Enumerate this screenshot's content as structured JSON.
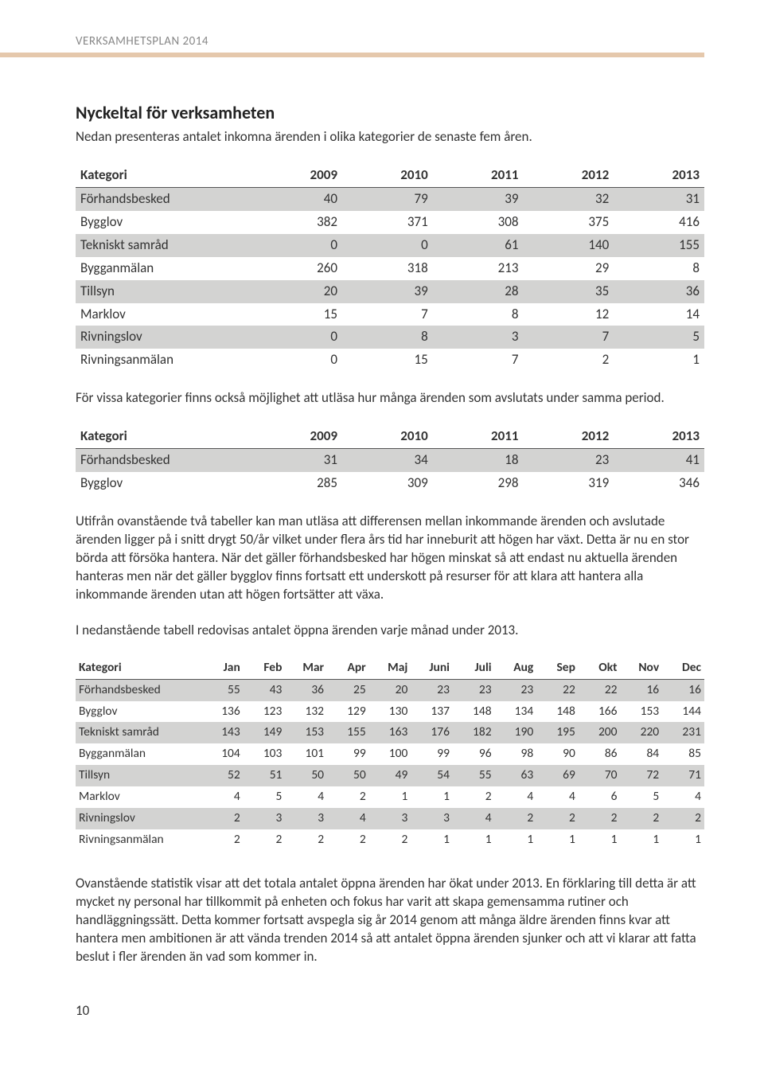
{
  "header": {
    "running": "VERKSAMHETSPLAN 2014"
  },
  "section": {
    "title": "Nyckeltal för verksamheten",
    "intro": "Nedan presenteras antalet inkomna ärenden i olika kategorier de senaste fem åren."
  },
  "table1": {
    "columns": [
      "Kategori",
      "2009",
      "2010",
      "2011",
      "2012",
      "2013"
    ],
    "rows": [
      [
        "Förhandsbesked",
        "40",
        "79",
        "39",
        "32",
        "31"
      ],
      [
        "Bygglov",
        "382",
        "371",
        "308",
        "375",
        "416"
      ],
      [
        "Tekniskt samråd",
        "0",
        "0",
        "61",
        "140",
        "155"
      ],
      [
        "Bygganmälan",
        "260",
        "318",
        "213",
        "29",
        "8"
      ],
      [
        "Tillsyn",
        "20",
        "39",
        "28",
        "35",
        "36"
      ],
      [
        "Marklov",
        "15",
        "7",
        "8",
        "12",
        "14"
      ],
      [
        "Rivningslov",
        "0",
        "8",
        "3",
        "7",
        "5"
      ],
      [
        "Rivningsanmälan",
        "0",
        "15",
        "7",
        "2",
        "1"
      ]
    ],
    "col_widths": [
      "28%",
      "14.4%",
      "14.4%",
      "14.4%",
      "14.4%",
      "14.4%"
    ],
    "stripe_color": "#d3d3d2"
  },
  "para1": "För vissa kategorier finns också möjlighet att utläsa hur många ärenden som avslutats under samma period.",
  "table2": {
    "columns": [
      "Kategori",
      "2009",
      "2010",
      "2011",
      "2012",
      "2013"
    ],
    "rows": [
      [
        "Förhandsbesked",
        "31",
        "34",
        "18",
        "23",
        "41"
      ],
      [
        "Bygglov",
        "285",
        "309",
        "298",
        "319",
        "346"
      ]
    ],
    "col_widths": [
      "28%",
      "14.4%",
      "14.4%",
      "14.4%",
      "14.4%",
      "14.4%"
    ],
    "stripe_color": "#d3d3d2"
  },
  "para2": "Utifrån ovanstående två tabeller kan man utläsa att differensen mellan inkommande ärenden och avslutade ärenden ligger på i snitt drygt 50/år vilket under flera års tid har inneburit att högen har växt. Detta är nu en stor börda att försöka hantera. När det gäller förhandsbesked har högen minskat så att endast nu aktuella ärenden hanteras men när det gäller bygglov finns fortsatt ett underskott på resurser för att klara att hantera alla inkommande ärenden utan att högen fortsätter att växa.",
  "para3": "I nedanstående tabell redovisas antalet öppna ärenden varje månad under 2013.",
  "table3": {
    "columns": [
      "Kategori",
      "Jan",
      "Feb",
      "Mar",
      "Apr",
      "Maj",
      "Juni",
      "Juli",
      "Aug",
      "Sep",
      "Okt",
      "Nov",
      "Dec"
    ],
    "rows": [
      [
        "Förhandsbesked",
        "55",
        "43",
        "36",
        "25",
        "20",
        "23",
        "23",
        "23",
        "22",
        "22",
        "16",
        "16"
      ],
      [
        "Bygglov",
        "136",
        "123",
        "132",
        "129",
        "130",
        "137",
        "148",
        "134",
        "148",
        "166",
        "153",
        "144"
      ],
      [
        "Tekniskt samråd",
        "143",
        "149",
        "153",
        "155",
        "163",
        "176",
        "182",
        "190",
        "195",
        "200",
        "220",
        "231"
      ],
      [
        "Bygganmälan",
        "104",
        "103",
        "101",
        "99",
        "100",
        "99",
        "96",
        "98",
        "90",
        "86",
        "84",
        "85"
      ],
      [
        "Tillsyn",
        "52",
        "51",
        "50",
        "50",
        "49",
        "54",
        "55",
        "63",
        "69",
        "70",
        "72",
        "71"
      ],
      [
        "Marklov",
        "4",
        "5",
        "4",
        "2",
        "1",
        "1",
        "2",
        "4",
        "4",
        "6",
        "5",
        "4"
      ],
      [
        "Rivningslov",
        "2",
        "3",
        "3",
        "4",
        "3",
        "3",
        "4",
        "2",
        "2",
        "2",
        "2",
        "2"
      ],
      [
        "Rivningsanmälan",
        "2",
        "2",
        "2",
        "2",
        "2",
        "1",
        "1",
        "1",
        "1",
        "1",
        "1",
        "1"
      ]
    ],
    "col_widths": [
      "20%",
      "6.66%",
      "6.66%",
      "6.66%",
      "6.66%",
      "6.66%",
      "6.66%",
      "6.66%",
      "6.66%",
      "6.66%",
      "6.66%",
      "6.66%",
      "6.66%"
    ],
    "stripe_color": "#d3d3d2"
  },
  "para4": "Ovanstående statistik visar att det totala antalet öppna ärenden har ökat under 2013. En förklaring till detta är att mycket ny personal har tillkommit på enheten och fokus har varit att skapa gemensamma rutiner och handläggningssätt. Detta kommer fortsatt avspegla sig år 2014 genom att många äldre ärenden finns kvar att hantera men ambitionen är att vända trenden 2014 så att antalet öppna ärenden sjunker och att vi klarar att fatta beslut i fler ärenden än vad som kommer in.",
  "page_number": "10",
  "colors": {
    "header_rule": "#e5c8ac",
    "text": "#333333",
    "muted": "#888888",
    "border": "#555555"
  }
}
